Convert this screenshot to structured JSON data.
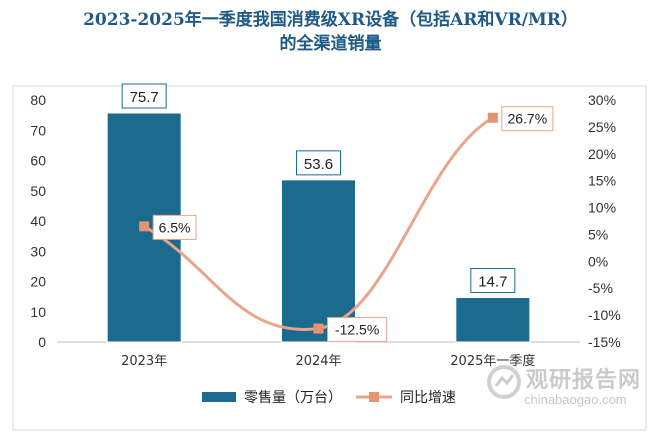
{
  "chart_data": {
    "type": "bar+line",
    "title_line1": "2023-2025年一季度我国消费级XR设备（包括AR和VR/MR）",
    "title_line2": "的全渠道销量",
    "categories": [
      "2023年",
      "2024年",
      "2025年一季度"
    ],
    "series": [
      {
        "name": "零售量（万台）",
        "type": "bar",
        "axis": "left",
        "values": [
          75.7,
          53.6,
          14.7
        ],
        "labels": [
          "75.7",
          "53.6",
          "14.7"
        ],
        "color": "#1c6a8e"
      },
      {
        "name": "同比增速",
        "type": "line",
        "axis": "right",
        "values": [
          6.5,
          -12.5,
          26.7
        ],
        "labels": [
          "6.5%",
          "-12.5%",
          "26.7%"
        ],
        "color": "#e8a58a"
      }
    ],
    "y_left": {
      "min": 0,
      "max": 80,
      "step": 10,
      "ticks": [
        "0",
        "10",
        "20",
        "30",
        "40",
        "50",
        "60",
        "70",
        "80"
      ]
    },
    "y_right": {
      "min": -15,
      "max": 30,
      "step": 5,
      "ticks": [
        "-15%",
        "-10%",
        "-5%",
        "0%",
        "5%",
        "10%",
        "15%",
        "20%",
        "25%",
        "30%"
      ]
    },
    "legend": {
      "position": "bottom",
      "bar_label": "零售量（万台）",
      "line_label": "同比增速"
    },
    "grid": false
  },
  "watermark": {
    "cn": "观研报告网",
    "en": "chinabaogao.com"
  }
}
